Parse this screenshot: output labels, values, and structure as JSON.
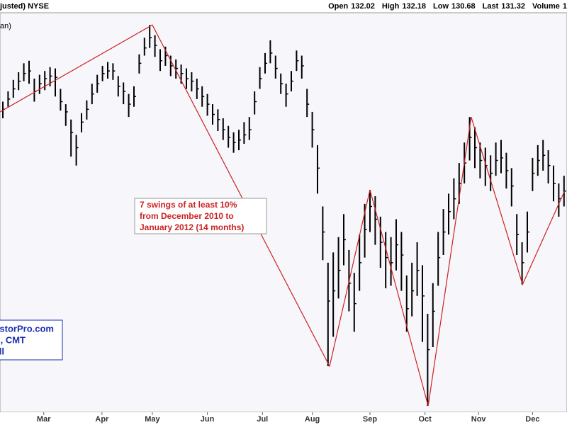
{
  "chart_data": {
    "type": "ohlc",
    "header_left": "justed) NYSE",
    "quote": [
      {
        "label": "Open",
        "value": 132.02
      },
      {
        "label": "High",
        "value": 132.18
      },
      {
        "label": "Low",
        "value": 130.68
      },
      {
        "label": "Last",
        "value": 131.32
      },
      {
        "label": "Volume",
        "value": "1"
      }
    ],
    "legend_text": "an)",
    "annotation": [
      "7 swings of at least 10%",
      "from December 2010 to",
      "January 2012 (14 months)"
    ],
    "watermark": [
      "storPro.com",
      ", CMT",
      "ll"
    ],
    "bar_color": "#000000",
    "swing_color": "#cc2222",
    "background": "#f6f6fb",
    "xlim": [
      -0.54,
      107.57
    ],
    "xticks": [
      {
        "value": 7.8,
        "label": "Mar"
      },
      {
        "value": 18.9,
        "label": "Apr"
      },
      {
        "value": 28.5,
        "label": "May"
      },
      {
        "value": 39,
        "label": "Jun"
      },
      {
        "value": 49.5,
        "label": "Jul"
      },
      {
        "value": 59,
        "label": "Aug"
      },
      {
        "value": 70,
        "label": "Sep"
      },
      {
        "value": 80.5,
        "label": "Oct"
      },
      {
        "value": 90.7,
        "label": "Nov"
      },
      {
        "value": 101,
        "label": "Dec"
      }
    ],
    "ylim": [
      106.9,
      137.6
    ],
    "high": [
      131.2,
      132.0,
      132.9,
      133.5,
      134.2,
      134.4,
      133.0,
      133.3,
      133.6,
      133.9,
      133.8,
      132.2,
      131.0,
      129.8,
      128.6,
      130.3,
      131.3,
      132.6,
      133.3,
      134.0,
      134.3,
      134.2,
      133.2,
      132.7,
      131.8,
      132.4,
      134.9,
      136.2,
      137.2,
      136.4,
      135.3,
      135.5,
      134.8,
      134.5,
      134.1,
      133.8,
      133.5,
      133.0,
      132.4,
      131.8,
      131.0,
      130.6,
      129.9,
      129.3,
      128.8,
      129.0,
      129.6,
      130.0,
      132.0,
      133.9,
      135.0,
      136.0,
      134.8,
      133.4,
      132.6,
      133.6,
      135.2,
      134.8,
      132.2,
      130.4,
      127.8,
      123.0,
      118.6,
      119.4,
      120.6,
      122.4,
      119.6,
      117.8,
      120.8,
      123.2,
      124.3,
      123.8,
      122.2,
      121.0,
      120.6,
      122.0,
      121.0,
      117.6,
      118.6,
      120.2,
      118.4,
      114.6,
      117.0,
      121.0,
      122.8,
      124.0,
      125.2,
      126.4,
      128.0,
      130.0,
      129.2,
      128.0,
      127.6,
      127.0,
      128.0,
      128.2,
      127.2,
      126.0,
      122.4,
      120.2,
      122.6,
      126.8,
      127.8,
      128.2,
      127.4,
      126.2,
      124.8,
      125.4
    ],
    "low": [
      129.9,
      130.8,
      131.5,
      132.1,
      132.8,
      132.6,
      131.2,
      131.8,
      132.1,
      132.4,
      131.6,
      130.5,
      129.3,
      126.9,
      126.2,
      128.8,
      129.8,
      131.0,
      131.9,
      132.8,
      133.0,
      132.9,
      131.6,
      131.0,
      130.0,
      130.8,
      133.4,
      134.8,
      135.4,
      134.7,
      133.6,
      134.0,
      133.2,
      133.0,
      132.6,
      132.2,
      132.0,
      131.4,
      130.8,
      130.1,
      129.4,
      128.9,
      128.2,
      127.6,
      127.2,
      127.4,
      127.9,
      128.2,
      130.2,
      132.2,
      133.4,
      134.2,
      133.0,
      131.8,
      130.8,
      132.0,
      133.6,
      133.0,
      130.0,
      127.6,
      124.0,
      118.8,
      110.5,
      112.8,
      115.8,
      118.4,
      114.8,
      113.2,
      116.4,
      119.0,
      121.0,
      120.0,
      118.2,
      116.6,
      116.8,
      118.0,
      116.4,
      113.2,
      114.4,
      116.0,
      112.4,
      107.4,
      112.0,
      116.8,
      119.2,
      120.8,
      122.0,
      123.2,
      124.8,
      126.6,
      126.0,
      125.2,
      124.6,
      124.2,
      125.4,
      125.6,
      124.4,
      123.0,
      119.2,
      116.9,
      119.4,
      124.2,
      125.4,
      125.8,
      124.8,
      123.4,
      122.2,
      123.0
    ],
    "close": [
      130.6,
      131.4,
      132.2,
      132.8,
      133.4,
      133.6,
      132.0,
      132.6,
      133.0,
      133.2,
      133.1,
      131.2,
      130.4,
      128.8,
      127.6,
      129.6,
      130.6,
      131.8,
      132.6,
      133.4,
      133.6,
      133.6,
      132.4,
      132.0,
      131.0,
      131.6,
      134.2,
      135.4,
      136.2,
      135.6,
      134.4,
      134.8,
      134.0,
      133.8,
      133.4,
      133.0,
      132.8,
      132.2,
      131.6,
      131.0,
      130.2,
      129.8,
      129.0,
      128.4,
      128.0,
      128.2,
      128.6,
      129.0,
      131.2,
      133.0,
      134.2,
      135.0,
      133.8,
      132.6,
      131.8,
      132.8,
      134.4,
      134.0,
      131.0,
      129.0,
      126.0,
      121.0,
      115.6,
      116.4,
      118.0,
      120.4,
      117.0,
      115.4,
      118.6,
      121.2,
      123.0,
      122.0,
      120.2,
      119.0,
      118.6,
      120.0,
      119.2,
      115.0,
      116.4,
      118.0,
      116.0,
      111.8,
      114.8,
      119.0,
      121.0,
      122.6,
      123.6,
      124.8,
      126.4,
      128.4,
      127.6,
      126.6,
      126.2,
      125.6,
      126.6,
      126.8,
      125.8,
      124.6,
      120.8,
      118.6,
      121.0,
      125.6,
      126.6,
      127.0,
      126.2,
      124.8,
      123.6,
      124.2
    ],
    "swings": {
      "x": [
        -0.54,
        28.5,
        62.3,
        70,
        81.1,
        89.3,
        99.1,
        107.1
      ],
      "values": [
        130.4,
        137.2,
        110.5,
        124.3,
        107.4,
        130.0,
        116.9,
        124.2
      ]
    }
  }
}
